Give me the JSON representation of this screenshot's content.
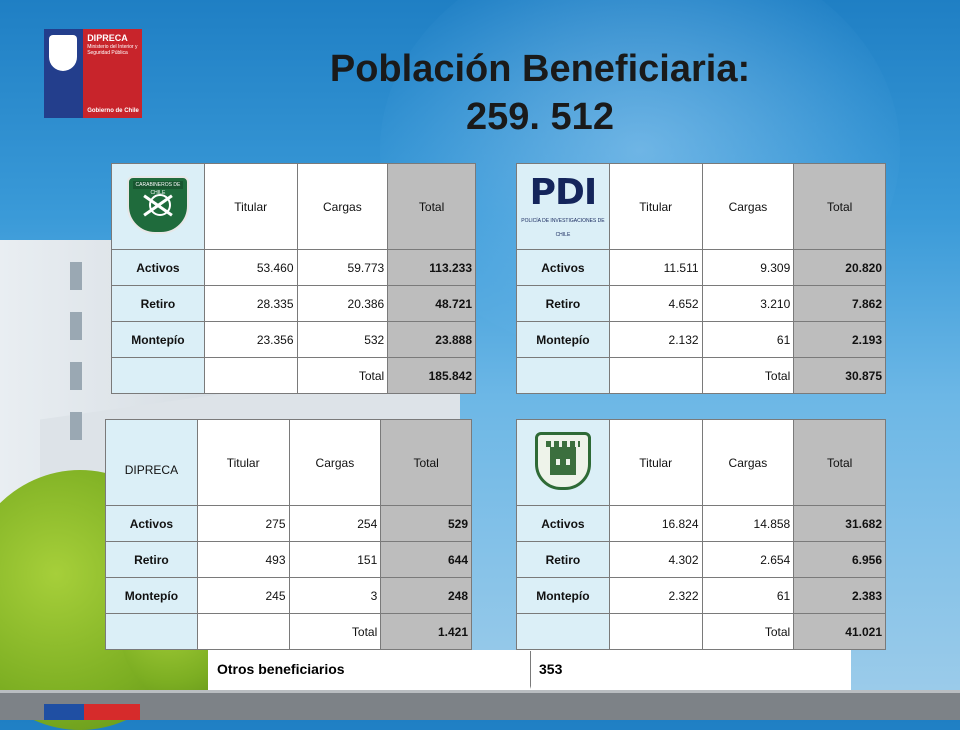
{
  "title": {
    "line1": "Población Beneficiaria:",
    "line2": "259. 512"
  },
  "logo": {
    "name": "DIPRECA",
    "subtitle": "Ministerio del Interior y Seguridad Pública",
    "footer": "Gobierno de Chile"
  },
  "colors": {
    "background": "#3a9ad8",
    "label_cell": "#dbeff7",
    "total_cell": "#bdbdbd"
  },
  "tables": {
    "carabineros": {
      "logo_icon": "carabineros-de-chile-badge",
      "logo_text": "CARABINEROS DE CHILE",
      "headers": [
        "Titular",
        "Cargas",
        "Total"
      ],
      "rows": [
        {
          "label": "Activos",
          "titular": "53.460",
          "cargas": "59.773",
          "total": "113.233"
        },
        {
          "label": "Retiro",
          "titular": "28.335",
          "cargas": "20.386",
          "total": "48.721"
        },
        {
          "label": "Montepío",
          "titular": "23.356",
          "cargas": "532",
          "total": "23.888"
        }
      ],
      "total_label": "Total",
      "grand_total": "185.842"
    },
    "pdi": {
      "logo_icon": "pdi-logo",
      "logo_text": "PDI",
      "logo_subtext": "POLICÍA DE INVESTIGACIONES DE CHILE",
      "headers": [
        "Titular",
        "Cargas",
        "Total"
      ],
      "rows": [
        {
          "label": "Activos",
          "titular": "11.511",
          "cargas": "9.309",
          "total": "20.820"
        },
        {
          "label": "Retiro",
          "titular": "4.652",
          "cargas": "3.210",
          "total": "7.862"
        },
        {
          "label": "Montepío",
          "titular": "2.132",
          "cargas": "61",
          "total": "2.193"
        }
      ],
      "total_label": "Total",
      "grand_total": "30.875"
    },
    "dipreca": {
      "logo_text": "DIPRECA",
      "headers": [
        "Titular",
        "Cargas",
        "Total"
      ],
      "rows": [
        {
          "label": "Activos",
          "titular": "275",
          "cargas": "254",
          "total": "529"
        },
        {
          "label": "Retiro",
          "titular": "493",
          "cargas": "151",
          "total": "644"
        },
        {
          "label": "Montepío",
          "titular": "245",
          "cargas": "3",
          "total": "248"
        }
      ],
      "total_label": "Total",
      "grand_total": "1.421"
    },
    "gendarmeria": {
      "logo_icon": "gendarmeria-badge",
      "headers": [
        "Titular",
        "Cargas",
        "Total"
      ],
      "rows": [
        {
          "label": "Activos",
          "titular": "16.824",
          "cargas": "14.858",
          "total": "31.682"
        },
        {
          "label": "Retiro",
          "titular": "4.302",
          "cargas": "2.654",
          "total": "6.956"
        },
        {
          "label": "Montepío",
          "titular": "2.322",
          "cargas": "61",
          "total": "2.383"
        }
      ],
      "total_label": "Total",
      "grand_total": "41.021"
    }
  },
  "otros": {
    "label": "Otros beneficiarios",
    "value": "353"
  }
}
